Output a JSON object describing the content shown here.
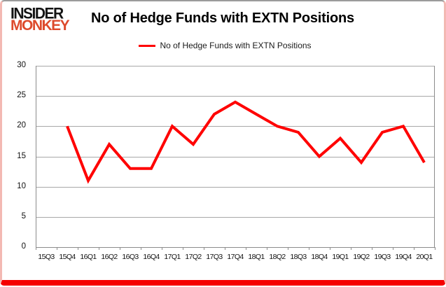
{
  "logo": {
    "line1": "INSIDER",
    "line2": "MONKEY"
  },
  "header": {
    "title": "No of Hedge Funds with EXTN Positions"
  },
  "legend": {
    "label": "No of Hedge Funds with EXTN Positions"
  },
  "colors": {
    "series_red": "#ff0000",
    "logo_black": "#141414",
    "logo_red": "#dd4a2c",
    "gridline_gray": "#a8a8a8",
    "axis_gray": "#8c8c8c",
    "frame_bottom_red": "#f50000",
    "frame_side_pink": "#f3b9b3",
    "frame_top_gray": "#9b9b9b"
  },
  "chart_data": {
    "type": "line",
    "title": "No of Hedge Funds with EXTN Positions",
    "categories": [
      "15Q3",
      "15Q4",
      "16Q1",
      "16Q2",
      "16Q3",
      "16Q4",
      "17Q1",
      "17Q2",
      "17Q3",
      "17Q4",
      "18Q1",
      "18Q2",
      "18Q3",
      "18Q4",
      "19Q1",
      "19Q2",
      "19Q3",
      "19Q4",
      "20Q1"
    ],
    "series": [
      {
        "name": "No of Hedge Funds with EXTN Positions",
        "color": "#ff0000",
        "values": [
          null,
          20,
          11,
          17,
          13,
          13,
          20,
          17,
          22,
          24,
          22,
          20,
          19,
          15,
          18,
          14,
          19,
          20,
          14
        ]
      }
    ],
    "xlabel": "",
    "ylabel": "",
    "ylim": [
      0,
      30
    ],
    "ytick_interval": 5,
    "yticks": [
      0,
      5,
      10,
      15,
      20,
      25,
      30
    ],
    "grid": true,
    "legend_position": "top"
  }
}
